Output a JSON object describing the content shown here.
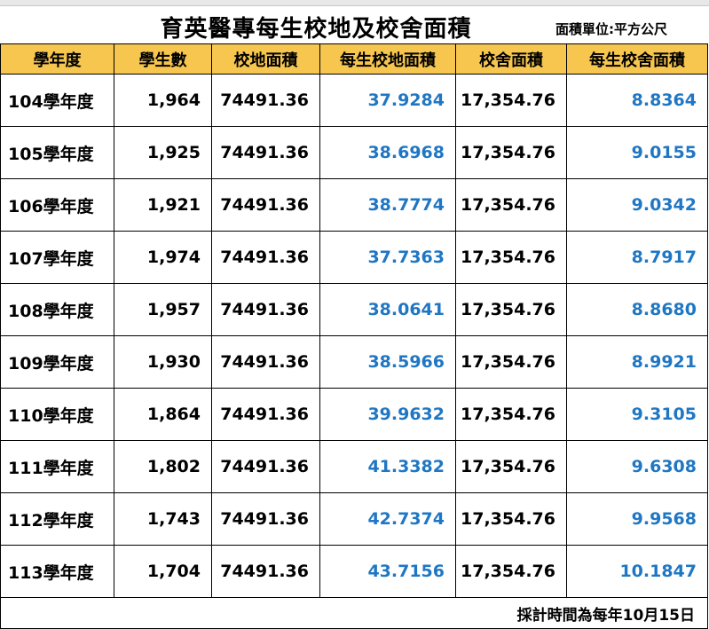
{
  "title": "育英醫專每生校地及校舍面積",
  "unit_label": "面積單位:平方公尺",
  "headers": [
    "學年度",
    "學生數",
    "校地面積",
    "每生校地面積",
    "校舍面積",
    "每生校舍面積"
  ],
  "rows": [
    {
      "year": "104學年度",
      "students": "1,964",
      "land": "74491.36",
      "land_per": "37.9284",
      "building": "17,354.76",
      "building_per": "8.8364"
    },
    {
      "year": "105學年度",
      "students": "1,925",
      "land": "74491.36",
      "land_per": "38.6968",
      "building": "17,354.76",
      "building_per": "9.0155"
    },
    {
      "year": "106學年度",
      "students": "1,921",
      "land": "74491.36",
      "land_per": "38.7774",
      "building": "17,354.76",
      "building_per": "9.0342"
    },
    {
      "year": "107學年度",
      "students": "1,974",
      "land": "74491.36",
      "land_per": "37.7363",
      "building": "17,354.76",
      "building_per": "8.7917"
    },
    {
      "year": "108學年度",
      "students": "1,957",
      "land": "74491.36",
      "land_per": "38.0641",
      "building": "17,354.76",
      "building_per": "8.8680"
    },
    {
      "year": "109學年度",
      "students": "1,930",
      "land": "74491.36",
      "land_per": "38.5966",
      "building": "17,354.76",
      "building_per": "8.9921"
    },
    {
      "year": "110學年度",
      "students": "1,864",
      "land": "74491.36",
      "land_per": "39.9632",
      "building": "17,354.76",
      "building_per": "9.3105"
    },
    {
      "year": "111學年度",
      "students": "1,802",
      "land": "74491.36",
      "land_per": "41.3382",
      "building": "17,354.76",
      "building_per": "9.6308"
    },
    {
      "year": "112學年度",
      "students": "1,743",
      "land": "74491.36",
      "land_per": "42.7374",
      "building": "17,354.76",
      "building_per": "9.9568"
    },
    {
      "year": "113學年度",
      "students": "1,704",
      "land": "74491.36",
      "land_per": "43.7156",
      "building": "17,354.76",
      "building_per": "10.1847"
    }
  ],
  "footer": "採計時間為每年10月15日",
  "colors": {
    "header_bg": "#f7c64f",
    "accent_blue": "#1f77c4"
  }
}
